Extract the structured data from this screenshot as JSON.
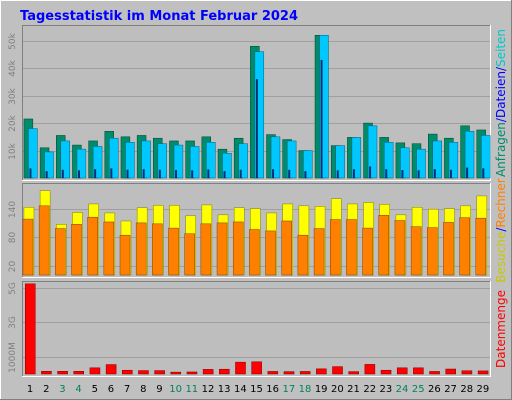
{
  "title": "Tagesstatistik im Monat Februar 2024",
  "colors": {
    "background": "#c0c0c0",
    "panel": "#bebebe",
    "title": "#0000ff",
    "anfragen": "#008b6b",
    "dateien": "#00c8ff",
    "seiten": "#00e0e0",
    "rechner": "#ff8000",
    "besuche": "#ffff00",
    "datenmenge": "#ff0000",
    "weekend_label": "#008060"
  },
  "chart_data": [
    {
      "type": "bar",
      "name_key": "top",
      "yticks": [
        "10k",
        "20k",
        "30k",
        "40k",
        "50k"
      ],
      "ytick_values": [
        10000,
        20000,
        30000,
        40000,
        50000
      ],
      "ylim": [
        0,
        55000
      ],
      "right_labels": [
        {
          "text": "Anfragen",
          "color": "#008b6b"
        },
        {
          "text": "/",
          "color": "#0000ff"
        },
        {
          "text": "Dateien",
          "color": "#0000ff"
        },
        {
          "text": "/",
          "color": "#0000ff"
        },
        {
          "text": "Seiten",
          "color": "#00c8c8"
        }
      ],
      "series_order": [
        "anfragen",
        "dateien",
        "seiten"
      ],
      "anfragen": [
        21500,
        11000,
        15500,
        12000,
        13500,
        17000,
        15000,
        15500,
        14500,
        13500,
        13500,
        15000,
        10500,
        14500,
        48000,
        15800,
        14000,
        10000,
        52000,
        11800,
        14800,
        20000,
        14800,
        12800,
        12500,
        16000,
        14500,
        19000,
        17500
      ],
      "dateien": [
        18000,
        9500,
        13500,
        10500,
        11500,
        14500,
        13000,
        13500,
        12500,
        12000,
        11500,
        13000,
        9000,
        12500,
        46000,
        15000,
        13500,
        10000,
        52000,
        11800,
        14800,
        19000,
        13000,
        11000,
        10500,
        13500,
        13000,
        17000,
        15500
      ],
      "seiten": [
        3500,
        2500,
        3000,
        2800,
        3200,
        3500,
        3000,
        3200,
        3000,
        2900,
        2800,
        3100,
        2500,
        3000,
        36000,
        3200,
        3000,
        2500,
        43000,
        2800,
        3200,
        4200,
        3200,
        2900,
        2800,
        3200,
        3000,
        3800,
        3500
      ]
    },
    {
      "type": "bar",
      "name_key": "middle",
      "yticks": [
        "20",
        "80",
        "140"
      ],
      "ytick_values": [
        20,
        80,
        140
      ],
      "ylim": [
        0,
        190
      ],
      "right_labels": [
        {
          "text": "Besuche",
          "color": "#c8c800"
        },
        {
          "text": "/",
          "color": "#0000ff"
        },
        {
          "text": "Rechner",
          "color": "#ff8000"
        }
      ],
      "series_order": [
        "besuche",
        "rechner"
      ],
      "besuche": [
        143,
        178,
        107,
        132,
        150,
        131,
        114,
        142,
        147,
        147,
        125,
        148,
        127,
        142,
        140,
        131,
        150,
        146,
        145,
        161,
        150,
        153,
        149,
        127,
        143,
        139,
        140,
        146,
        167
      ],
      "rechner": [
        118,
        146,
        98,
        107,
        122,
        112,
        84,
        110,
        108,
        99,
        87,
        108,
        110,
        112,
        96,
        93,
        114,
        84,
        98,
        117,
        117,
        99,
        126,
        115,
        102,
        100,
        111,
        121,
        120
      ]
    },
    {
      "type": "bar",
      "name_key": "bottom",
      "yticks": [
        "1000M",
        "3G",
        "5G"
      ],
      "ytick_values": [
        1000,
        3000,
        5000
      ],
      "ylim": [
        0,
        5300
      ],
      "right_labels": [
        {
          "text": "Datenmenge",
          "color": "#ff0000"
        }
      ],
      "series_order": [
        "datenmenge"
      ],
      "datenmenge": [
        5250,
        160,
        160,
        160,
        360,
        550,
        220,
        200,
        200,
        110,
        120,
        270,
        280,
        690,
        710,
        150,
        140,
        150,
        300,
        430,
        140,
        560,
        220,
        360,
        360,
        150,
        290,
        190,
        180
      ]
    }
  ],
  "x_labels": [
    "1",
    "2",
    "3",
    "4",
    "5",
    "6",
    "7",
    "8",
    "9",
    "10",
    "11",
    "12",
    "13",
    "14",
    "15",
    "16",
    "17",
    "18",
    "19",
    "20",
    "21",
    "22",
    "23",
    "24",
    "25",
    "26",
    "27",
    "28",
    "29"
  ],
  "weekend_days": [
    "3",
    "4",
    "10",
    "11",
    "17",
    "18",
    "24",
    "25"
  ]
}
